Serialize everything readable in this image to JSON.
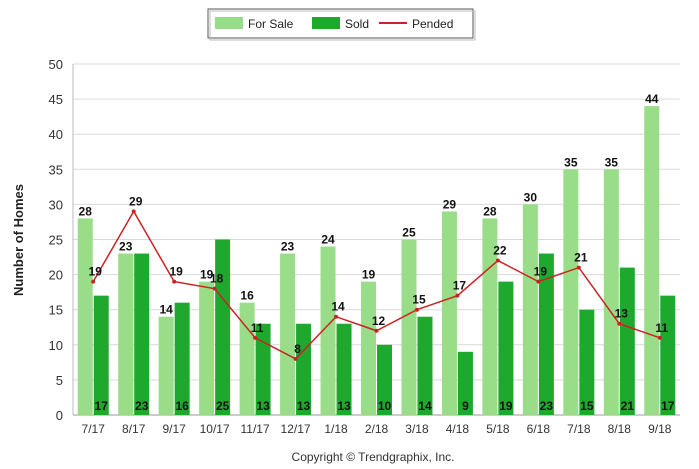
{
  "chart_data": {
    "type": "bar",
    "categories": [
      "7/17",
      "8/17",
      "9/17",
      "10/17",
      "11/17",
      "12/17",
      "1/18",
      "2/18",
      "3/18",
      "4/18",
      "5/18",
      "6/18",
      "7/18",
      "8/18",
      "9/18"
    ],
    "series": [
      {
        "name": "For Sale",
        "kind": "bar",
        "color": "#99dd88",
        "values": [
          28,
          23,
          14,
          19,
          16,
          23,
          24,
          19,
          25,
          29,
          28,
          30,
          35,
          35,
          44
        ]
      },
      {
        "name": "Sold",
        "kind": "bar",
        "color": "#1fa82e",
        "values": [
          17,
          23,
          16,
          25,
          13,
          13,
          13,
          10,
          14,
          9,
          19,
          23,
          15,
          21,
          17
        ]
      },
      {
        "name": "Pended",
        "kind": "line",
        "color": "#cc2222",
        "values": [
          19,
          29,
          19,
          18,
          11,
          8,
          14,
          12,
          15,
          17,
          22,
          19,
          21,
          13,
          11
        ]
      }
    ],
    "ylabel": "Number of Homes",
    "xlabel": "",
    "ylim": [
      0,
      50
    ],
    "yticks": [
      0,
      5,
      10,
      15,
      20,
      25,
      30,
      35,
      40,
      45,
      50
    ],
    "grid": true,
    "legend_position": "top-center"
  },
  "footer": {
    "copyright": "Copyright © Trendgraphix, Inc."
  }
}
